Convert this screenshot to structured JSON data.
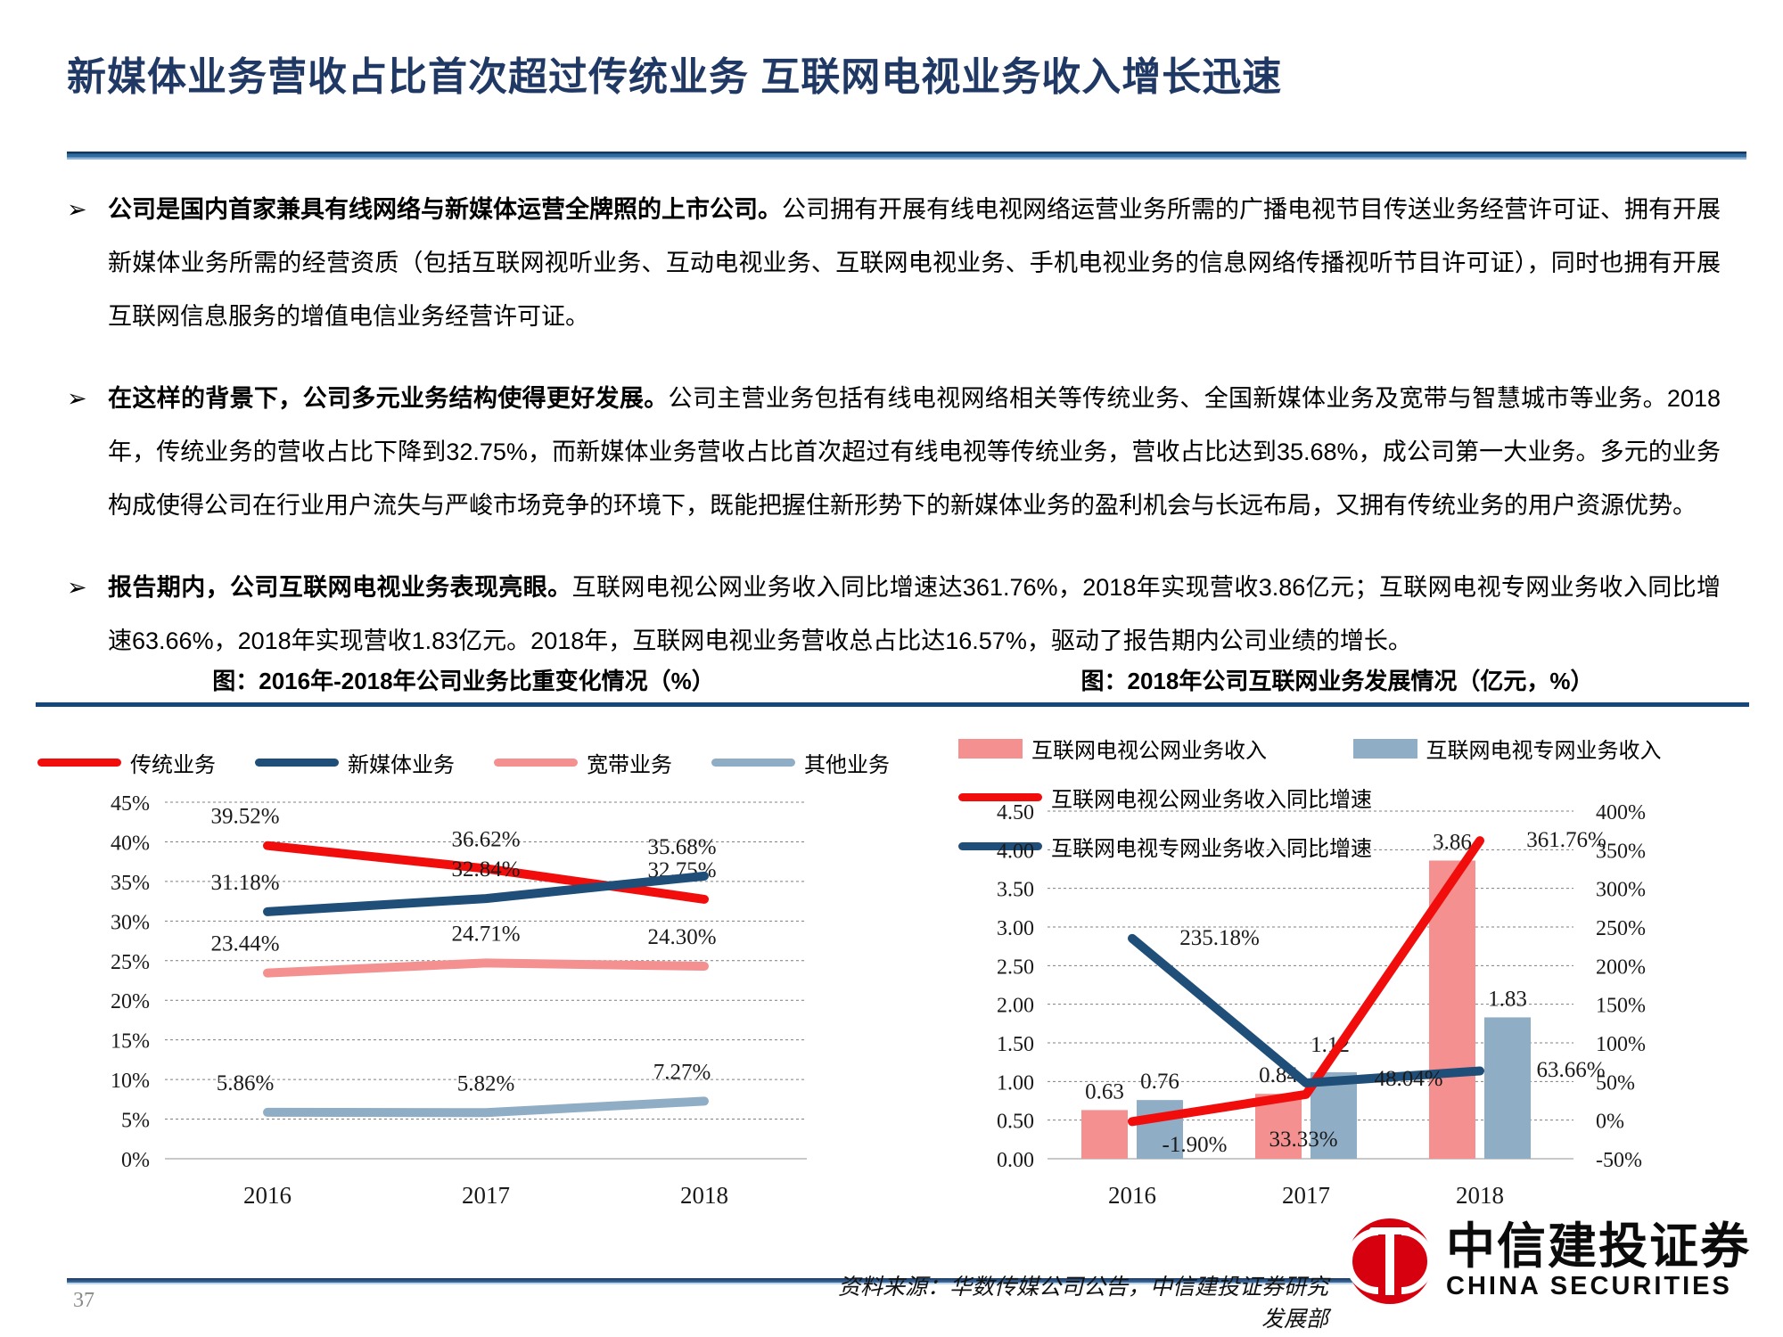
{
  "slide": {
    "title": "新媒体业务营收占比首次超过传统业务 互联网电视业务收入增长迅速",
    "bullet_marker": "➢",
    "bullets": [
      {
        "lead": "公司是国内首家兼具有线网络与新媒体运营全牌照的上市公司。",
        "rest": "公司拥有开展有线电视网络运营业务所需的广播电视节目传送业务经营许可证、拥有开展新媒体业务所需的经营资质（包括互联网视听业务、互动电视业务、互联网电视业务、手机电视业务的信息网络传播视听节目许可证），同时也拥有开展互联网信息服务的增值电信业务经营许可证。"
      },
      {
        "lead": "在这样的背景下，公司多元业务结构使得更好发展。",
        "rest": "公司主营业务包括有线电视网络相关等传统业务、全国新媒体业务及宽带与智慧城市等业务。2018年，传统业务的营收占比下降到32.75%，而新媒体业务营收占比首次超过有线电视等传统业务，营收占比达到35.68%，成公司第一大业务。多元的业务构成使得公司在行业用户流失与严峻市场竞争的环境下，既能把握住新形势下的新媒体业务的盈利机会与长远布局，又拥有传统业务的用户资源优势。"
      },
      {
        "lead": "报告期内，公司互联网电视业务表现亮眼。",
        "rest": "互联网电视公网业务收入同比增速达361.76%，2018年实现营收3.86亿元；互联网电视专网业务收入同比增速63.66%，2018年实现营收1.83亿元。2018年，互联网电视业务营收总占比达16.57%，驱动了报告期内公司业绩的增长。"
      }
    ]
  },
  "chart_data": [
    {
      "type": "line",
      "title": "图：2016年-2018年公司业务比重变化情况（%）",
      "categories": [
        "2016",
        "2017",
        "2018"
      ],
      "series": [
        {
          "name": "传统业务",
          "color": "#F20D0D",
          "values": [
            39.52,
            36.62,
            32.75
          ]
        },
        {
          "name": "新媒体业务",
          "color": "#1F4E79",
          "values": [
            31.18,
            32.84,
            35.68
          ]
        },
        {
          "name": "宽带业务",
          "color": "#F4908F",
          "values": [
            23.44,
            24.71,
            24.3
          ]
        },
        {
          "name": "其他业务",
          "color": "#8FAEC6",
          "values": [
            5.86,
            5.82,
            7.27
          ]
        }
      ],
      "y_axis": {
        "min": 0,
        "max": 45,
        "step": 5,
        "unit": "%"
      },
      "grid": "dotted-horizontal",
      "legend_position": "top"
    },
    {
      "type": "combo-bar-line",
      "title": "图：2018年公司互联网业务发展情况（亿元，%）",
      "categories": [
        "2016",
        "2017",
        "2018"
      ],
      "bars": [
        {
          "name": "互联网电视公网业务收入",
          "color": "#F4908F",
          "values": [
            0.63,
            0.84,
            3.86
          ]
        },
        {
          "name": "互联网电视专网业务收入",
          "color": "#8FAEC6",
          "values": [
            0.76,
            1.12,
            1.83
          ]
        }
      ],
      "lines": [
        {
          "name": "互联网电视公网业务收入同比增速",
          "color": "#F20D0D",
          "values": [
            -1.9,
            33.33,
            361.76
          ]
        },
        {
          "name": "互联网电视专网业务收入同比增速",
          "color": "#1F4E79",
          "values": [
            235.18,
            48.04,
            63.66
          ]
        }
      ],
      "left_axis": {
        "min": 0,
        "max": 4.5,
        "step": 0.5,
        "unit": "亿元"
      },
      "right_axis": {
        "min": -50,
        "max": 400,
        "step": 50,
        "unit": "%"
      },
      "grid": "dotted-horizontal",
      "legend_position": "top"
    }
  ],
  "footer": {
    "page_number": "37",
    "source": "资料来源：华数传媒公司公告，中信建投证券研究发展部",
    "logo_cn": "中信建投证券",
    "logo_en": "CHINA SECURITIES"
  },
  "colors": {
    "title_navy": "#1F3864",
    "rule_navy": "#17477A",
    "series_red": "#F20D0D",
    "series_navy": "#1F4E79",
    "series_pink": "#F4908F",
    "series_steel": "#8FAEC6",
    "logo_red": "#D7000F"
  }
}
